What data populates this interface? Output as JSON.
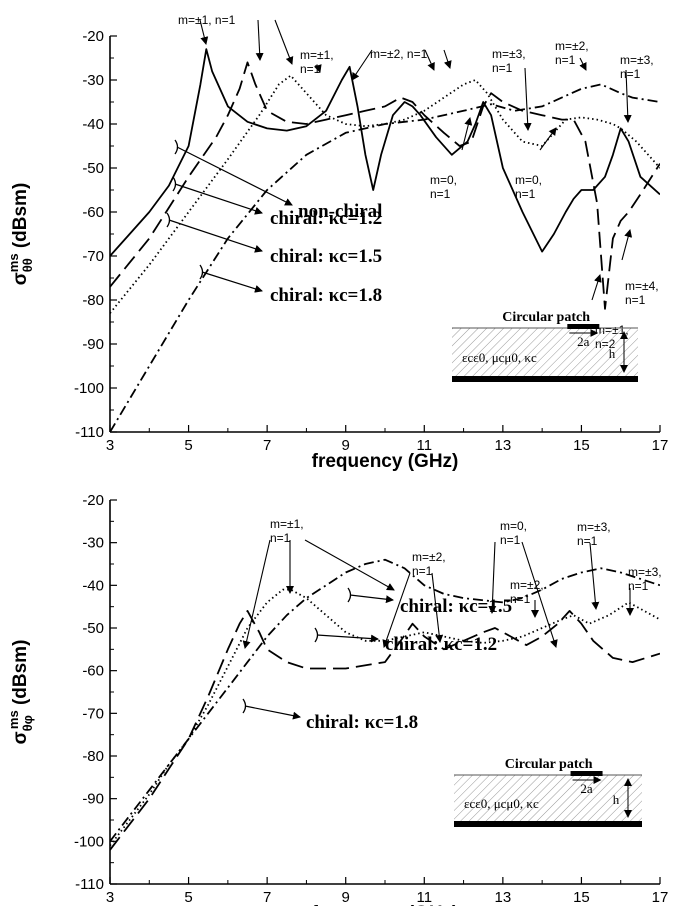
{
  "chart_data": [
    {
      "type": "line",
      "xlabel": "frequency (GHz)",
      "ylabel": "σθθms (dBsm)",
      "ylabel_parts": {
        "sym": "σ",
        "sup": "ms",
        "sub": "θθ",
        "unit": " (dBsm)"
      },
      "xlim": [
        3,
        17
      ],
      "ylim": [
        -110,
        -20
      ],
      "xticks": [
        3,
        5,
        7,
        9,
        11,
        13,
        15,
        17
      ],
      "yticks": [
        -20,
        -30,
        -40,
        -50,
        -60,
        -70,
        -80,
        -90,
        -100,
        -110
      ],
      "grid": false,
      "legend_placement": "left-center",
      "series": [
        {
          "label": "non-chiral",
          "style": "solid",
          "x": [
            3,
            4,
            4.5,
            5,
            5.3,
            5.45,
            5.6,
            6,
            6.5,
            7,
            7.5,
            8,
            8.5,
            8.9,
            9.1,
            9.3,
            9.5,
            9.7,
            9.9,
            10.2,
            10.5,
            10.7,
            10.9,
            11.3,
            11.7,
            12.1,
            12.3,
            12.5,
            12.7,
            13,
            13.5,
            14,
            14.3,
            14.6,
            14.8,
            15,
            15.3,
            15.6,
            15.8,
            16,
            16.2,
            16.5,
            17
          ],
          "y": [
            -70,
            -60,
            -54,
            -45,
            -31,
            -23,
            -28,
            -36,
            -39.5,
            -41,
            -41.5,
            -40.5,
            -37,
            -30,
            -27,
            -36,
            -47,
            -55,
            -47,
            -38,
            -35,
            -36,
            -38,
            -43,
            -47,
            -44,
            -40,
            -35,
            -38,
            -50,
            -60,
            -69,
            -65,
            -60,
            -57,
            -55,
            -55,
            -52,
            -47,
            -41,
            -44,
            -52,
            -56
          ]
        },
        {
          "label": "chiral: κc=1.2",
          "style": "dashed",
          "x": [
            3,
            4,
            5,
            5.7,
            6,
            6.3,
            6.5,
            6.7,
            7,
            7.5,
            8,
            8.5,
            9,
            9.5,
            10,
            10.4,
            10.7,
            11,
            11.5,
            11.9,
            12.2,
            12.5,
            12.7,
            13,
            13.5,
            14,
            14.5,
            14.8,
            15.1,
            15.4,
            15.6,
            15.8,
            16,
            16.2,
            16.5,
            17
          ],
          "y": [
            -77,
            -66,
            -52,
            -43,
            -38,
            -32,
            -26,
            -31,
            -37,
            -39.5,
            -40,
            -39,
            -38,
            -37,
            -36,
            -34,
            -35,
            -38,
            -42,
            -45,
            -44,
            -36,
            -33,
            -35,
            -37,
            -38,
            -39,
            -39,
            -44,
            -58,
            -82,
            -66,
            -62,
            -60,
            -56,
            -49
          ]
        },
        {
          "label": "chiral: κc=1.5",
          "style": "dotted",
          "x": [
            3,
            4,
            5,
            6,
            6.8,
            7.3,
            7.6,
            8,
            8.5,
            9,
            9.5,
            10,
            10.5,
            11,
            11.5,
            12,
            12.3,
            12.6,
            13,
            13.5,
            14,
            14.3,
            14.6,
            15,
            15.4,
            15.8,
            16,
            16.4,
            17
          ],
          "y": [
            -83,
            -72,
            -60,
            -48,
            -38,
            -31,
            -29,
            -33,
            -38,
            -40,
            -40.5,
            -40,
            -39,
            -37,
            -34,
            -31,
            -30,
            -33,
            -39,
            -44,
            -45,
            -42,
            -39,
            -38.5,
            -39,
            -40,
            -41,
            -44,
            -50
          ]
        },
        {
          "label": "chiral: κc=1.8",
          "style": "dashdot",
          "x": [
            3,
            4,
            5,
            6,
            7,
            8,
            9,
            10,
            11,
            12,
            12.7,
            13.3,
            14,
            14.5,
            15,
            15.5,
            16,
            16.3,
            17
          ],
          "y": [
            -110,
            -95,
            -80,
            -66,
            -55,
            -47,
            -42,
            -40,
            -39,
            -37,
            -35.5,
            -37,
            -36,
            -34,
            -32,
            -31,
            -33,
            -34,
            -35
          ]
        }
      ],
      "annotations": [
        {
          "lines": [
            "m=±1, n=1"
          ]
        },
        {
          "lines": [
            "m=±2, n=1"
          ]
        },
        {
          "lines": [
            "m=±1,",
            "n=1"
          ]
        },
        {
          "lines": [
            "m=±3,",
            "n=1"
          ]
        },
        {
          "lines": [
            "m=±2,",
            "n=1"
          ]
        },
        {
          "lines": [
            "m=±3,",
            "n=1"
          ]
        },
        {
          "lines": [
            "m=0,",
            "n=1"
          ]
        },
        {
          "lines": [
            "m=0,",
            "n=1"
          ]
        },
        {
          "lines": [
            "m=±1,",
            "n=2"
          ]
        },
        {
          "lines": [
            "m=±4,",
            "n=1"
          ]
        }
      ],
      "inset": {
        "title": "Circular patch",
        "dim": "2a",
        "height": "h",
        "material": "εcε0, μcμ0, κc"
      }
    },
    {
      "type": "line",
      "xlabel": "frequency (GHz)",
      "ylabel": "σθφms (dBsm)",
      "ylabel_parts": {
        "sym": "σ",
        "sup": "ms",
        "sub": "θφ",
        "unit": " (dBsm)"
      },
      "xlim": [
        3,
        17
      ],
      "ylim": [
        -110,
        -20
      ],
      "xticks": [
        3,
        5,
        7,
        9,
        11,
        13,
        15,
        17
      ],
      "yticks": [
        -20,
        -30,
        -40,
        -50,
        -60,
        -70,
        -80,
        -90,
        -100,
        -110
      ],
      "grid": false,
      "legend_placement": "center",
      "series": [
        {
          "label": "chiral: κc=1.2",
          "style": "dashed",
          "x": [
            3,
            3.5,
            4,
            4.5,
            5,
            5.5,
            6,
            6.3,
            6.5,
            6.8,
            7,
            7.5,
            8,
            9,
            10,
            10.4,
            10.7,
            11,
            11.5,
            12,
            12.5,
            12.8,
            13.2,
            13.6,
            14,
            14.4,
            14.7,
            15,
            15.3,
            15.8,
            16.3,
            17
          ],
          "y": [
            -102,
            -96,
            -90,
            -83,
            -76,
            -66,
            -55,
            -49,
            -46,
            -51,
            -55,
            -58,
            -59.5,
            -59.5,
            -58,
            -53,
            -49,
            -52,
            -55,
            -53,
            -51,
            -50,
            -52,
            -54,
            -52,
            -49,
            -46,
            -49,
            -53,
            -57,
            -58,
            -56
          ]
        },
        {
          "label": "chiral: κc=1.5",
          "style": "dotted",
          "x": [
            3,
            3.5,
            4,
            4.5,
            5,
            5.5,
            6,
            6.5,
            7,
            7.4,
            7.6,
            8,
            8.5,
            9,
            9.5,
            10,
            10.5,
            11,
            11.5,
            12,
            12.5,
            13,
            13.5,
            14,
            14.5,
            14.8,
            15.2,
            15.7,
            16.2,
            17
          ],
          "y": [
            -101,
            -95,
            -89,
            -82,
            -76,
            -68,
            -59,
            -50,
            -44,
            -41,
            -41,
            -43,
            -47,
            -51,
            -53,
            -53,
            -52,
            -51,
            -52,
            -53,
            -53.5,
            -53,
            -52,
            -50,
            -48,
            -47,
            -49,
            -47,
            -44,
            -48
          ]
        },
        {
          "label": "chiral: κc=1.8",
          "style": "dashdot",
          "x": [
            3,
            3.5,
            4,
            4.5,
            5,
            5.5,
            6,
            6.5,
            7,
            7.5,
            8,
            8.5,
            9,
            9.5,
            10,
            10.5,
            11,
            11.5,
            12,
            12.5,
            13,
            13.5,
            14,
            14.5,
            15,
            15.5,
            16,
            16.5,
            17
          ],
          "y": [
            -100,
            -94,
            -88,
            -82,
            -76,
            -70,
            -64,
            -58,
            -52,
            -47,
            -43,
            -40,
            -37,
            -35,
            -34,
            -36,
            -40,
            -42,
            -43,
            -43.5,
            -44,
            -43,
            -41,
            -38.5,
            -37,
            -36,
            -37,
            -38.5,
            -40
          ]
        }
      ],
      "annotations": [
        {
          "lines": [
            "m=±1,",
            "n=1"
          ]
        },
        {
          "lines": [
            "m=±2,",
            "n=1"
          ]
        },
        {
          "lines": [
            "m=0,",
            "n=1"
          ]
        },
        {
          "lines": [
            "m=±2,",
            "n=1"
          ]
        },
        {
          "lines": [
            "m=±3,",
            "n=1"
          ]
        },
        {
          "lines": [
            "m=±3,",
            "n=1"
          ]
        }
      ],
      "inset": {
        "title": "Circular patch",
        "dim": "2a",
        "height": "h",
        "material": "εcε0, μcμ0, κc"
      }
    }
  ]
}
